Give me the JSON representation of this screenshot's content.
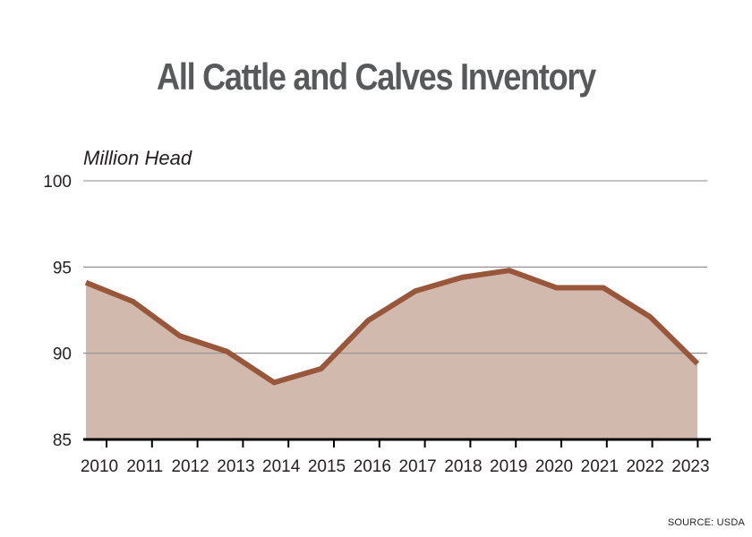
{
  "chart_data": {
    "type": "area",
    "title": "All Cattle and Calves Inventory",
    "ylabel": "Million Head",
    "source": "SOURCE: USDA",
    "ylim": [
      85,
      100
    ],
    "yticks": [
      85,
      90,
      95,
      100
    ],
    "grid": true,
    "x": [
      "2010",
      "2011",
      "2012",
      "2013",
      "2014",
      "2015",
      "2016",
      "2017",
      "2018",
      "2019",
      "2020",
      "2021",
      "2022",
      "2023"
    ],
    "series": [
      {
        "values": [
          94.1,
          93.0,
          91.0,
          90.1,
          88.3,
          89.1,
          91.9,
          93.6,
          94.4,
          94.8,
          93.8,
          93.8,
          92.1,
          89.4
        ],
        "line_color": "#98573b",
        "fill_color": "#c9ad9f"
      }
    ]
  }
}
